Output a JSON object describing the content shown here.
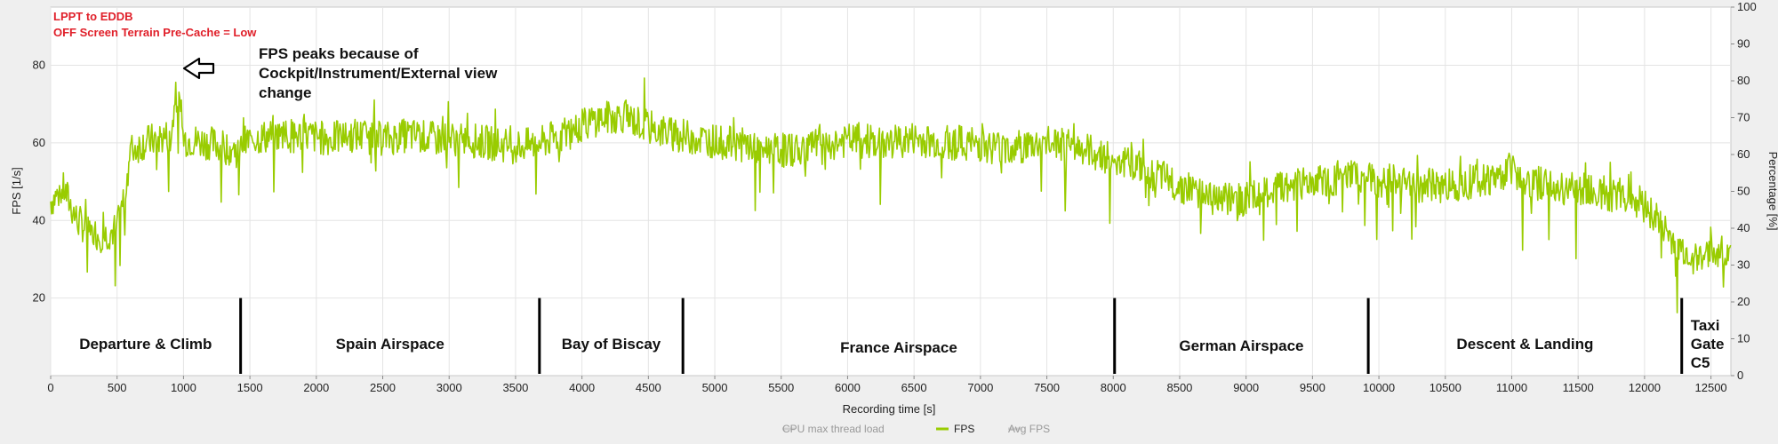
{
  "chart_data": {
    "type": "line",
    "notes": [
      "LPPT to EDDB",
      "OFF Screen Terrain Pre-Cache = Low"
    ],
    "xlabel": "Recording time [s]",
    "ylabel": "FPS [1/s]",
    "y2label": "Percentage [%]",
    "xlim": [
      0,
      12650
    ],
    "ylim": [
      0,
      95
    ],
    "y2lim": [
      0,
      100
    ],
    "xticks": [
      0,
      500,
      1000,
      1500,
      2000,
      2500,
      3000,
      3500,
      4000,
      4500,
      5000,
      5500,
      6000,
      6500,
      7000,
      7500,
      8000,
      8500,
      9000,
      9500,
      10000,
      10500,
      11000,
      11500,
      12000,
      12500
    ],
    "yticks": [
      20,
      40,
      60,
      80
    ],
    "y2ticks": [
      0,
      10,
      20,
      30,
      40,
      50,
      60,
      70,
      80,
      90,
      100
    ],
    "grid": true,
    "series": [
      {
        "name": "FPS",
        "color": "#99cc00",
        "x": [
          0,
          100,
          200,
          300,
          400,
          500,
          550,
          600,
          700,
          800,
          900,
          950,
          1000,
          1200,
          1400,
          1500,
          1700,
          1900,
          2100,
          2300,
          2500,
          2700,
          2900,
          3100,
          3300,
          3500,
          3700,
          3900,
          4100,
          4300,
          4500,
          4700,
          4900,
          5100,
          5300,
          5500,
          5700,
          5900,
          6100,
          6300,
          6500,
          6700,
          6900,
          7100,
          7300,
          7500,
          7700,
          7900,
          8100,
          8300,
          8500,
          8700,
          8900,
          9100,
          9300,
          9500,
          9700,
          9900,
          10100,
          10300,
          10500,
          10700,
          10900,
          11000,
          11100,
          11300,
          11500,
          11700,
          11900,
          12000,
          12100,
          12200,
          12300,
          12400,
          12500,
          12600
        ],
        "values": [
          45,
          48,
          40,
          37,
          36,
          38,
          45,
          58,
          60,
          61,
          62,
          72,
          61,
          60,
          58,
          61,
          62,
          62,
          61,
          62,
          61,
          62,
          61,
          61,
          60,
          59,
          60,
          63,
          66,
          67,
          64,
          62,
          61,
          60,
          59,
          58,
          59,
          60,
          61,
          60,
          61,
          60,
          60,
          59,
          59,
          60,
          59,
          57,
          55,
          52,
          49,
          47,
          45,
          46,
          49,
          50,
          51,
          51,
          50,
          49,
          49,
          50,
          51,
          54,
          50,
          49,
          48,
          47,
          46,
          44,
          40,
          35,
          32,
          30,
          31,
          32
        ]
      }
    ],
    "phases": [
      {
        "label": "Departure & Climb",
        "from": 0,
        "to": 1430
      },
      {
        "label": "Spain Airspace",
        "from": 1430,
        "to": 3680
      },
      {
        "label": "Bay of Biscay",
        "from": 3680,
        "to": 4760
      },
      {
        "label": "France Airspace",
        "from": 4760,
        "to": 8010
      },
      {
        "label": "German Airspace",
        "from": 8010,
        "to": 9920
      },
      {
        "label": "Descent & Landing",
        "from": 9920,
        "to": 12280
      },
      {
        "label": "Taxi Gate C5",
        "from": 12280,
        "to": 12650
      }
    ],
    "annotation": {
      "lines": [
        "FPS peaks because of",
        "Cockpit/Instrument/External view",
        "change"
      ]
    },
    "legend": {
      "placement": "bottom-center",
      "items": [
        {
          "label": "CPU max thread load",
          "color": "#cfcfcf",
          "active": false
        },
        {
          "label": "FPS",
          "color": "#99cc00",
          "active": true
        },
        {
          "label": "Avg FPS",
          "color": "#cfcfcf",
          "active": false
        }
      ]
    }
  }
}
